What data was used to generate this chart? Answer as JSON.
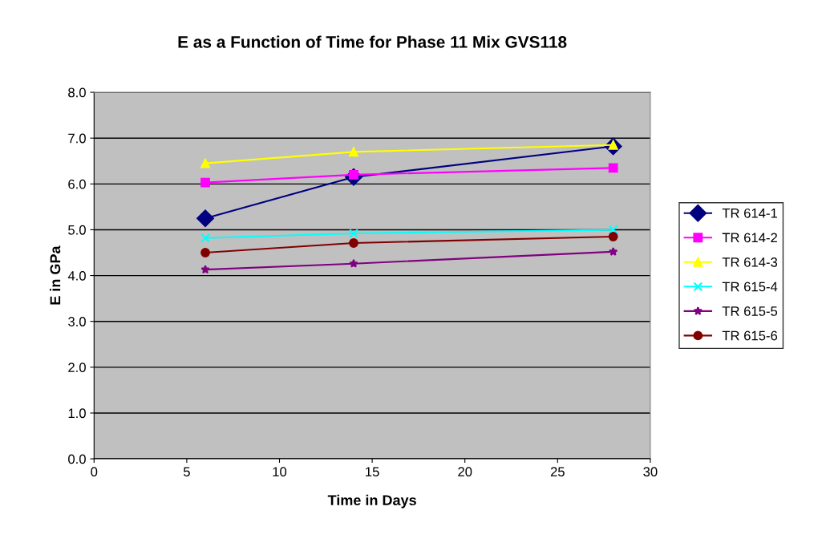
{
  "chart_data": {
    "type": "line",
    "title": "E as a Function of Time for Phase 11 Mix GVS118",
    "xlabel": "Time in Days",
    "ylabel": "E in GPa",
    "x": [
      6,
      14,
      28
    ],
    "series": [
      {
        "name": "TR 614-1",
        "color": "#000080",
        "marker": "diamond",
        "values": [
          5.25,
          6.15,
          6.82
        ]
      },
      {
        "name": "TR 614-2",
        "color": "#ff00ff",
        "marker": "square",
        "values": [
          6.03,
          6.2,
          6.35
        ]
      },
      {
        "name": "TR 614-3",
        "color": "#ffff00",
        "marker": "triangle",
        "values": [
          6.45,
          6.7,
          6.85
        ]
      },
      {
        "name": "TR 615-4",
        "color": "#00ffff",
        "marker": "cross",
        "values": [
          4.82,
          4.92,
          5.0
        ]
      },
      {
        "name": "TR 615-5",
        "color": "#800080",
        "marker": "star",
        "values": [
          4.13,
          4.26,
          4.52
        ]
      },
      {
        "name": "TR 615-6",
        "color": "#800000",
        "marker": "circle",
        "values": [
          4.5,
          4.71,
          4.85
        ]
      }
    ],
    "xlim": [
      0,
      30
    ],
    "xticks": [
      0,
      5,
      10,
      15,
      20,
      25,
      30
    ],
    "ylim": [
      0,
      8
    ],
    "yticks": [
      {
        "value": 0,
        "label": "0.0"
      },
      {
        "value": 1,
        "label": "1.0"
      },
      {
        "value": 2,
        "label": "2.0"
      },
      {
        "value": 3,
        "label": "3.0"
      },
      {
        "value": 4,
        "label": "4.0"
      },
      {
        "value": 5,
        "label": "5.0"
      },
      {
        "value": 6,
        "label": "6.0"
      },
      {
        "value": 7,
        "label": "7.0"
      },
      {
        "value": 8,
        "label": "8.0"
      }
    ],
    "grid": "y",
    "legend": "right",
    "line_style": "solid"
  }
}
